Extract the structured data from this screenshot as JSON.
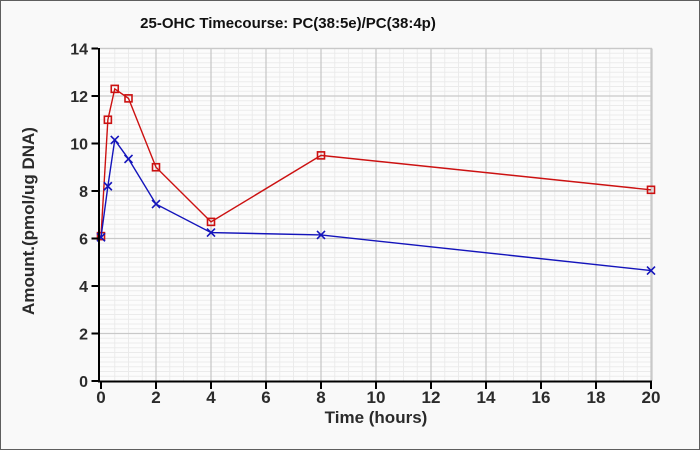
{
  "window": {
    "background": "#f9f9f9",
    "border_color": "#5e5e5e"
  },
  "chart_data": {
    "type": "line",
    "title": "25-OHC Timecourse: PC(38:5e)/PC(38:4p)",
    "xlabel": "Time (hours)",
    "ylabel": "Amount.(pmol/ug DNA)",
    "xlim": [
      0,
      20
    ],
    "ylim": [
      0,
      14
    ],
    "xticks": [
      0,
      2,
      4,
      6,
      8,
      10,
      12,
      14,
      16,
      18,
      20
    ],
    "yticks": [
      0,
      2,
      4,
      6,
      8,
      10,
      12,
      14
    ],
    "legend": "none",
    "grid": {
      "major": true,
      "minor": true,
      "minor_x_step": 0.5,
      "minor_y_step": 0.2,
      "major_color": "#c9c9c9",
      "minor_color": "#ebebeb",
      "plot_background": "#fcfcfc"
    },
    "axis_color": "#000000",
    "x": [
      0,
      0.25,
      0.5,
      1,
      2,
      4,
      8,
      20
    ],
    "series": [
      {
        "name": "PC(38:5e)",
        "color": "#cc1111",
        "marker": "open-square",
        "values": [
          6.1,
          11.0,
          12.3,
          11.9,
          9.0,
          6.7,
          9.5,
          8.05
        ]
      },
      {
        "name": "PC(38:4p)",
        "color": "#1414bb",
        "marker": "x-cross",
        "values": [
          6.05,
          8.2,
          10.15,
          9.35,
          7.45,
          6.25,
          6.15,
          4.65
        ]
      }
    ]
  }
}
